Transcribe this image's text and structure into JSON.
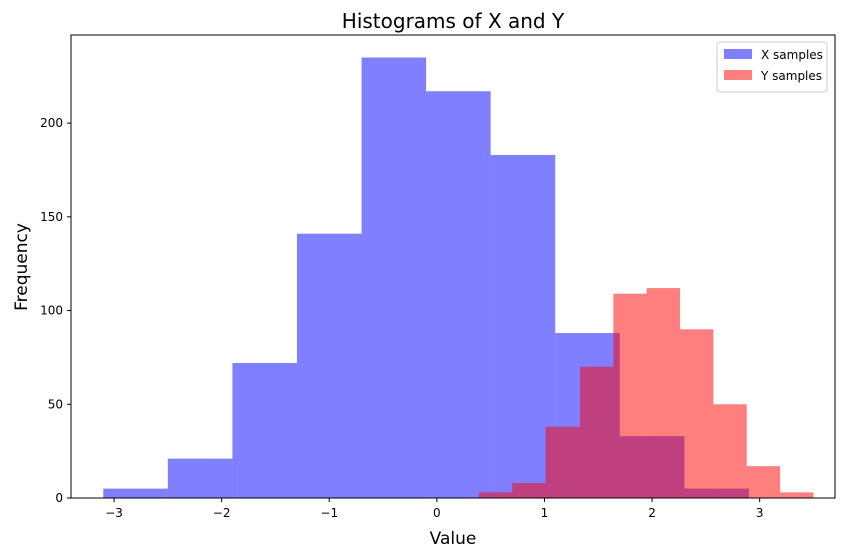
{
  "chart_data": {
    "type": "histogram",
    "title": "Histograms of X and Y",
    "xlabel": "Value",
    "ylabel": "Frequency",
    "xlim": [
      -3.4,
      3.7
    ],
    "ylim": [
      0,
      247
    ],
    "x_ticks": [
      -3,
      -2,
      -1,
      0,
      1,
      2,
      3
    ],
    "x_tick_labels": [
      "−3",
      "−2",
      "−1",
      "0",
      "1",
      "2",
      "3"
    ],
    "y_ticks": [
      0,
      50,
      100,
      150,
      200
    ],
    "y_tick_labels": [
      "0",
      "50",
      "100",
      "150",
      "200"
    ],
    "grid": false,
    "legend_position": "top-right",
    "series": [
      {
        "name": "X samples",
        "color": "#0000ff",
        "opacity": 0.5,
        "bin_edges": [
          -3.1,
          -2.5,
          -1.9,
          -1.3,
          -0.7,
          -0.1,
          0.5,
          1.1,
          1.7,
          2.3,
          2.9
        ],
        "counts": [
          5,
          21,
          72,
          141,
          235,
          217,
          183,
          88,
          33,
          5
        ]
      },
      {
        "name": "Y samples",
        "color": "#ff0000",
        "opacity": 0.5,
        "bin_edges": [
          0.39,
          0.7,
          1.01,
          1.33,
          1.64,
          1.95,
          2.26,
          2.57,
          2.88,
          3.19,
          3.5
        ],
        "counts": [
          3,
          8,
          38,
          70,
          109,
          112,
          90,
          50,
          17,
          3
        ]
      }
    ]
  }
}
